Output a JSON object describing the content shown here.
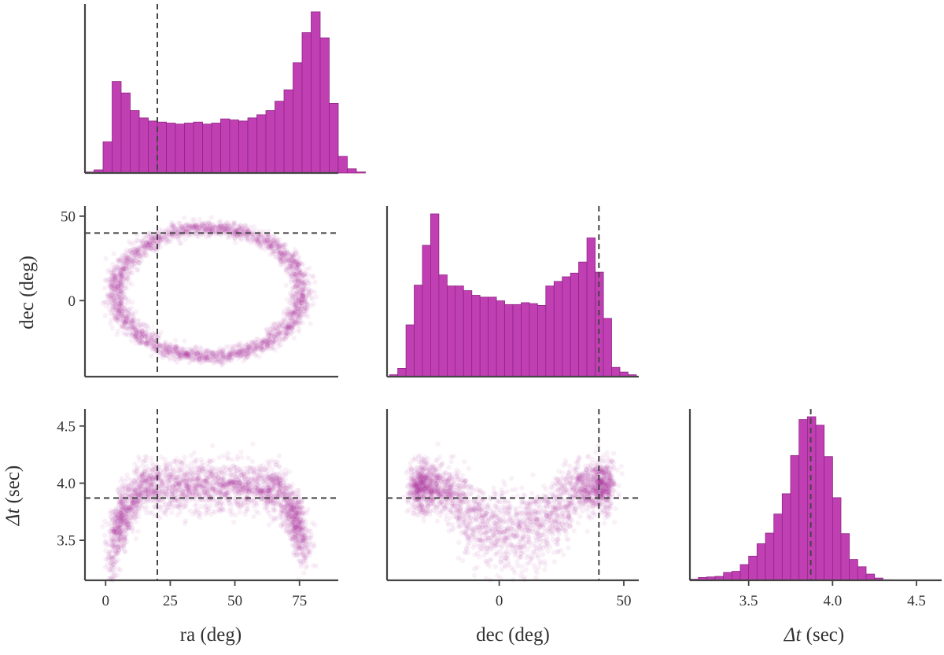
{
  "chart_data": {
    "type": "corner",
    "color": "#b0279d",
    "bar_fill": "#c040b4",
    "bar_edge": "#8f2384",
    "spine_color": "#444444",
    "truth_line_color": "#444444",
    "truths": {
      "ra": 20,
      "dec": 40,
      "dt": 3.87
    },
    "variables": [
      {
        "key": "ra",
        "label": "ra (deg)",
        "range": [
          -8,
          90
        ],
        "ticks": [
          0,
          25,
          50,
          75
        ]
      },
      {
        "key": "dec",
        "label": "dec (deg)",
        "range": [
          -45,
          56
        ],
        "ticks": [
          0,
          50
        ]
      },
      {
        "key": "dt",
        "label_symbol": "Δt",
        "label_unit": "(sec)",
        "range": [
          3.15,
          4.65
        ],
        "ticks": [
          3.5,
          4.0,
          4.5
        ]
      }
    ],
    "y_ticks": {
      "dec": [
        0,
        50
      ],
      "dt": [
        3.5,
        4.0,
        4.5
      ]
    },
    "histograms": {
      "ra": {
        "edges_start": -8,
        "bin_width": 3.5,
        "counts": [
          1,
          3,
          30,
          88,
          77,
          60,
          53,
          50,
          49,
          48,
          47,
          48,
          49,
          47,
          48,
          52,
          51,
          50,
          53,
          56,
          60,
          69,
          80,
          106,
          135,
          155,
          130,
          67,
          16,
          4,
          1
        ]
      },
      "dec": {
        "edges_start": -44,
        "bin_width": 3.3,
        "counts": [
          2,
          9,
          56,
          99,
          142,
          176,
          110,
          98,
          98,
          93,
          88,
          86,
          86,
          82,
          78,
          78,
          80,
          79,
          77,
          98,
          103,
          108,
          112,
          124,
          150,
          113,
          63,
          10,
          5,
          2
        ]
      },
      "dt": {
        "edges_start": 3.15,
        "bin_width": 0.05,
        "counts": [
          2,
          5,
          6,
          7,
          14,
          16,
          28,
          43,
          65,
          84,
          118,
          154,
          222,
          286,
          291,
          276,
          220,
          147,
          83,
          37,
          24,
          11,
          4,
          1,
          0
        ]
      }
    }
  }
}
